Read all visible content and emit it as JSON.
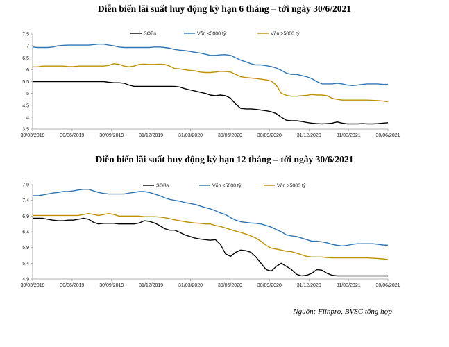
{
  "source_note": "Nguồn: Fiinpro, BVSC tổng hợp",
  "chart_data": [
    {
      "type": "line",
      "title": "Diễn biến lãi suất huy động kỳ hạn 6 tháng – tới ngày 30/6/2021",
      "ylim": [
        3.5,
        7.5
      ],
      "yticks": [
        "7,5",
        "7",
        "6,5",
        "6",
        "5,5",
        "5",
        "4,5",
        "4",
        "3,5"
      ],
      "ytick_values": [
        7.5,
        7,
        6.5,
        6,
        5.5,
        5,
        4.5,
        4,
        3.5
      ],
      "x_tick_labels": [
        "30/03/2019",
        "30/06/2019",
        "30/09/2019",
        "31/12/2019",
        "31/03/2020",
        "30/06/2020",
        "30/09/2020",
        "31/12/2020",
        "31/03/2021",
        "30/06/2021"
      ],
      "legend_position": "top-right",
      "grid": false,
      "series": [
        {
          "name": "SOBs",
          "color": "#000000",
          "values": [
            5.5,
            5.5,
            5.5,
            5.5,
            5.5,
            5.5,
            5.5,
            5.5,
            5.5,
            5.5,
            5.5,
            5.5,
            5.5,
            5.5,
            5.5,
            5.47,
            5.45,
            5.45,
            5.43,
            5.35,
            5.3,
            5.3,
            5.3,
            5.3,
            5.3,
            5.3,
            5.3,
            5.3,
            5.3,
            5.27,
            5.2,
            5.15,
            5.1,
            5.05,
            5.0,
            4.93,
            4.9,
            4.93,
            4.9,
            4.8,
            4.55,
            4.37,
            4.35,
            4.35,
            4.33,
            4.3,
            4.27,
            4.23,
            4.15,
            4.0,
            3.87,
            3.85,
            3.85,
            3.82,
            3.78,
            3.75,
            3.73,
            3.72,
            3.73,
            3.75,
            3.8,
            3.75,
            3.72,
            3.72,
            3.72,
            3.73,
            3.72,
            3.72,
            3.73,
            3.75,
            3.77
          ]
        },
        {
          "name": "Vốn <5000 tỷ",
          "color": "#2e75b6",
          "values": [
            6.95,
            6.93,
            6.93,
            6.93,
            6.95,
            7.0,
            7.02,
            7.03,
            7.03,
            7.03,
            7.03,
            7.03,
            7.05,
            7.07,
            7.07,
            7.03,
            7.0,
            6.95,
            6.93,
            6.93,
            6.93,
            6.93,
            6.93,
            6.93,
            6.95,
            6.95,
            6.93,
            6.9,
            6.85,
            6.82,
            6.8,
            6.77,
            6.73,
            6.7,
            6.65,
            6.6,
            6.6,
            6.62,
            6.63,
            6.6,
            6.5,
            6.4,
            6.33,
            6.25,
            6.2,
            6.2,
            6.17,
            6.13,
            6.07,
            5.97,
            5.85,
            5.8,
            5.8,
            5.75,
            5.7,
            5.62,
            5.5,
            5.4,
            5.4,
            5.4,
            5.43,
            5.4,
            5.35,
            5.33,
            5.35,
            5.38,
            5.4,
            5.4,
            5.4,
            5.38,
            5.38
          ]
        },
        {
          "name": "Vốn >5000 tỷ",
          "color": "#bf9000",
          "values": [
            6.12,
            6.12,
            6.15,
            6.15,
            6.15,
            6.15,
            6.15,
            6.13,
            6.13,
            6.15,
            6.15,
            6.15,
            6.15,
            6.15,
            6.15,
            6.18,
            6.25,
            6.23,
            6.15,
            6.12,
            6.15,
            6.22,
            6.23,
            6.22,
            6.22,
            6.23,
            6.22,
            6.15,
            6.05,
            6.03,
            6.0,
            5.97,
            5.95,
            5.9,
            5.88,
            5.88,
            5.9,
            5.93,
            5.92,
            5.9,
            5.8,
            5.7,
            5.67,
            5.65,
            5.63,
            5.6,
            5.57,
            5.52,
            5.35,
            5.0,
            4.92,
            4.88,
            4.88,
            4.9,
            4.92,
            4.95,
            4.93,
            4.93,
            4.9,
            4.8,
            4.75,
            4.72,
            4.72,
            4.72,
            4.72,
            4.72,
            4.72,
            4.71,
            4.7,
            4.68,
            4.65
          ]
        }
      ]
    },
    {
      "type": "line",
      "title": "Diễn biến lãi suất huy động kỳ hạn 12 tháng – tới ngày 30/6/2021",
      "ylim": [
        4.9,
        7.9
      ],
      "yticks": [
        "7,9",
        "7,4",
        "6,9",
        "6,4",
        "5,9",
        "5,4",
        "4,9"
      ],
      "ytick_values": [
        7.9,
        7.4,
        6.9,
        6.4,
        5.9,
        5.4,
        4.9
      ],
      "x_tick_labels": [
        "30/03/2019",
        "30/06/2019",
        "30/09/2019",
        "31/12/2019",
        "31/03/2020",
        "30/06/2020",
        "30/09/2020",
        "31/12/2020",
        "31/03/2021",
        "30/06/2021"
      ],
      "legend_position": "top-right",
      "grid": false,
      "series": [
        {
          "name": "SOBs",
          "color": "#000000",
          "values": [
            6.83,
            6.83,
            6.83,
            6.8,
            6.77,
            6.75,
            6.75,
            6.77,
            6.77,
            6.8,
            6.83,
            6.8,
            6.7,
            6.65,
            6.67,
            6.67,
            6.67,
            6.65,
            6.65,
            6.65,
            6.65,
            6.68,
            6.75,
            6.73,
            6.68,
            6.6,
            6.5,
            6.45,
            6.45,
            6.38,
            6.3,
            6.25,
            6.2,
            6.17,
            6.15,
            6.13,
            6.15,
            6.0,
            5.7,
            5.62,
            5.75,
            5.82,
            5.8,
            5.75,
            5.6,
            5.4,
            5.2,
            5.15,
            5.3,
            5.4,
            5.3,
            5.2,
            5.05,
            5.0,
            5.02,
            5.08,
            5.2,
            5.18,
            5.08,
            5.02,
            5.0,
            5.0,
            5.0,
            5.0,
            5.0,
            5.0,
            5.0,
            5.0,
            5.0,
            5.0,
            5.0
          ]
        },
        {
          "name": "Vốn <5000 tỷ",
          "color": "#2e75b6",
          "values": [
            7.55,
            7.55,
            7.57,
            7.6,
            7.63,
            7.65,
            7.68,
            7.68,
            7.7,
            7.73,
            7.75,
            7.75,
            7.7,
            7.65,
            7.62,
            7.6,
            7.6,
            7.6,
            7.6,
            7.63,
            7.65,
            7.68,
            7.68,
            7.65,
            7.6,
            7.55,
            7.48,
            7.43,
            7.4,
            7.37,
            7.33,
            7.3,
            7.27,
            7.22,
            7.17,
            7.13,
            7.07,
            7.0,
            6.95,
            6.85,
            6.77,
            6.72,
            6.7,
            6.68,
            6.67,
            6.65,
            6.6,
            6.55,
            6.47,
            6.4,
            6.3,
            6.27,
            6.25,
            6.2,
            6.15,
            6.1,
            6.1,
            6.08,
            6.05,
            6.0,
            5.97,
            5.95,
            5.97,
            6.0,
            6.02,
            6.02,
            6.02,
            6.02,
            6.0,
            5.98,
            5.97
          ]
        },
        {
          "name": "Vốn >5000 tỷ",
          "color": "#bf9000",
          "values": [
            6.92,
            6.92,
            6.92,
            6.92,
            6.92,
            6.92,
            6.92,
            6.92,
            6.92,
            6.92,
            6.95,
            6.98,
            6.95,
            6.92,
            6.95,
            6.98,
            6.95,
            6.9,
            6.9,
            6.9,
            6.9,
            6.9,
            6.88,
            6.88,
            6.88,
            6.87,
            6.85,
            6.82,
            6.78,
            6.75,
            6.72,
            6.7,
            6.68,
            6.67,
            6.65,
            6.65,
            6.6,
            6.57,
            6.52,
            6.47,
            6.42,
            6.38,
            6.33,
            6.27,
            6.2,
            6.1,
            5.97,
            5.88,
            5.85,
            5.82,
            5.78,
            5.77,
            5.72,
            5.67,
            5.62,
            5.6,
            5.6,
            5.6,
            5.58,
            5.57,
            5.57,
            5.57,
            5.57,
            5.57,
            5.57,
            5.57,
            5.57,
            5.56,
            5.55,
            5.54,
            5.52
          ]
        }
      ]
    }
  ]
}
